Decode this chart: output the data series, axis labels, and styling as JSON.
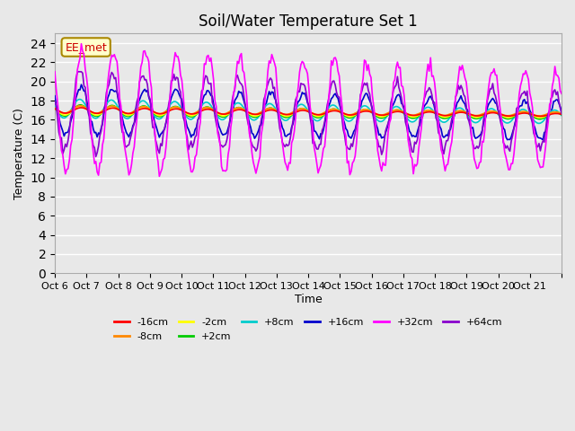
{
  "title": "Soil/Water Temperature Set 1",
  "xlabel": "Time",
  "ylabel": "Temperature (C)",
  "ylim": [
    0,
    25
  ],
  "yticks": [
    0,
    2,
    4,
    6,
    8,
    10,
    12,
    14,
    16,
    18,
    20,
    22,
    24
  ],
  "x_labels": [
    "Oct 6",
    "Oct 7",
    "Oct 8",
    "Oct 9",
    "Oct 10",
    "Oct 11",
    "Oct 12",
    "Oct 13",
    "Oct 14",
    "Oct 15",
    "Oct 16",
    "Oct 17",
    "Oct 18",
    "Oct 19",
    "Oct 20",
    "Oct 21",
    ""
  ],
  "num_days": 16,
  "series_colors": {
    "-16cm": "#ff0000",
    "-8cm": "#ff8800",
    "-2cm": "#ffff00",
    "+2cm": "#00cc00",
    "+8cm": "#00cccc",
    "+16cm": "#0000cc",
    "+32cm": "#ff00ff",
    "+64cm": "#8800cc"
  },
  "background_color": "#e8e8e8",
  "grid_color": "#ffffff",
  "annotation_text": "EE_met",
  "annotation_color": "#cc0000",
  "annotation_bg": "#ffffcc"
}
